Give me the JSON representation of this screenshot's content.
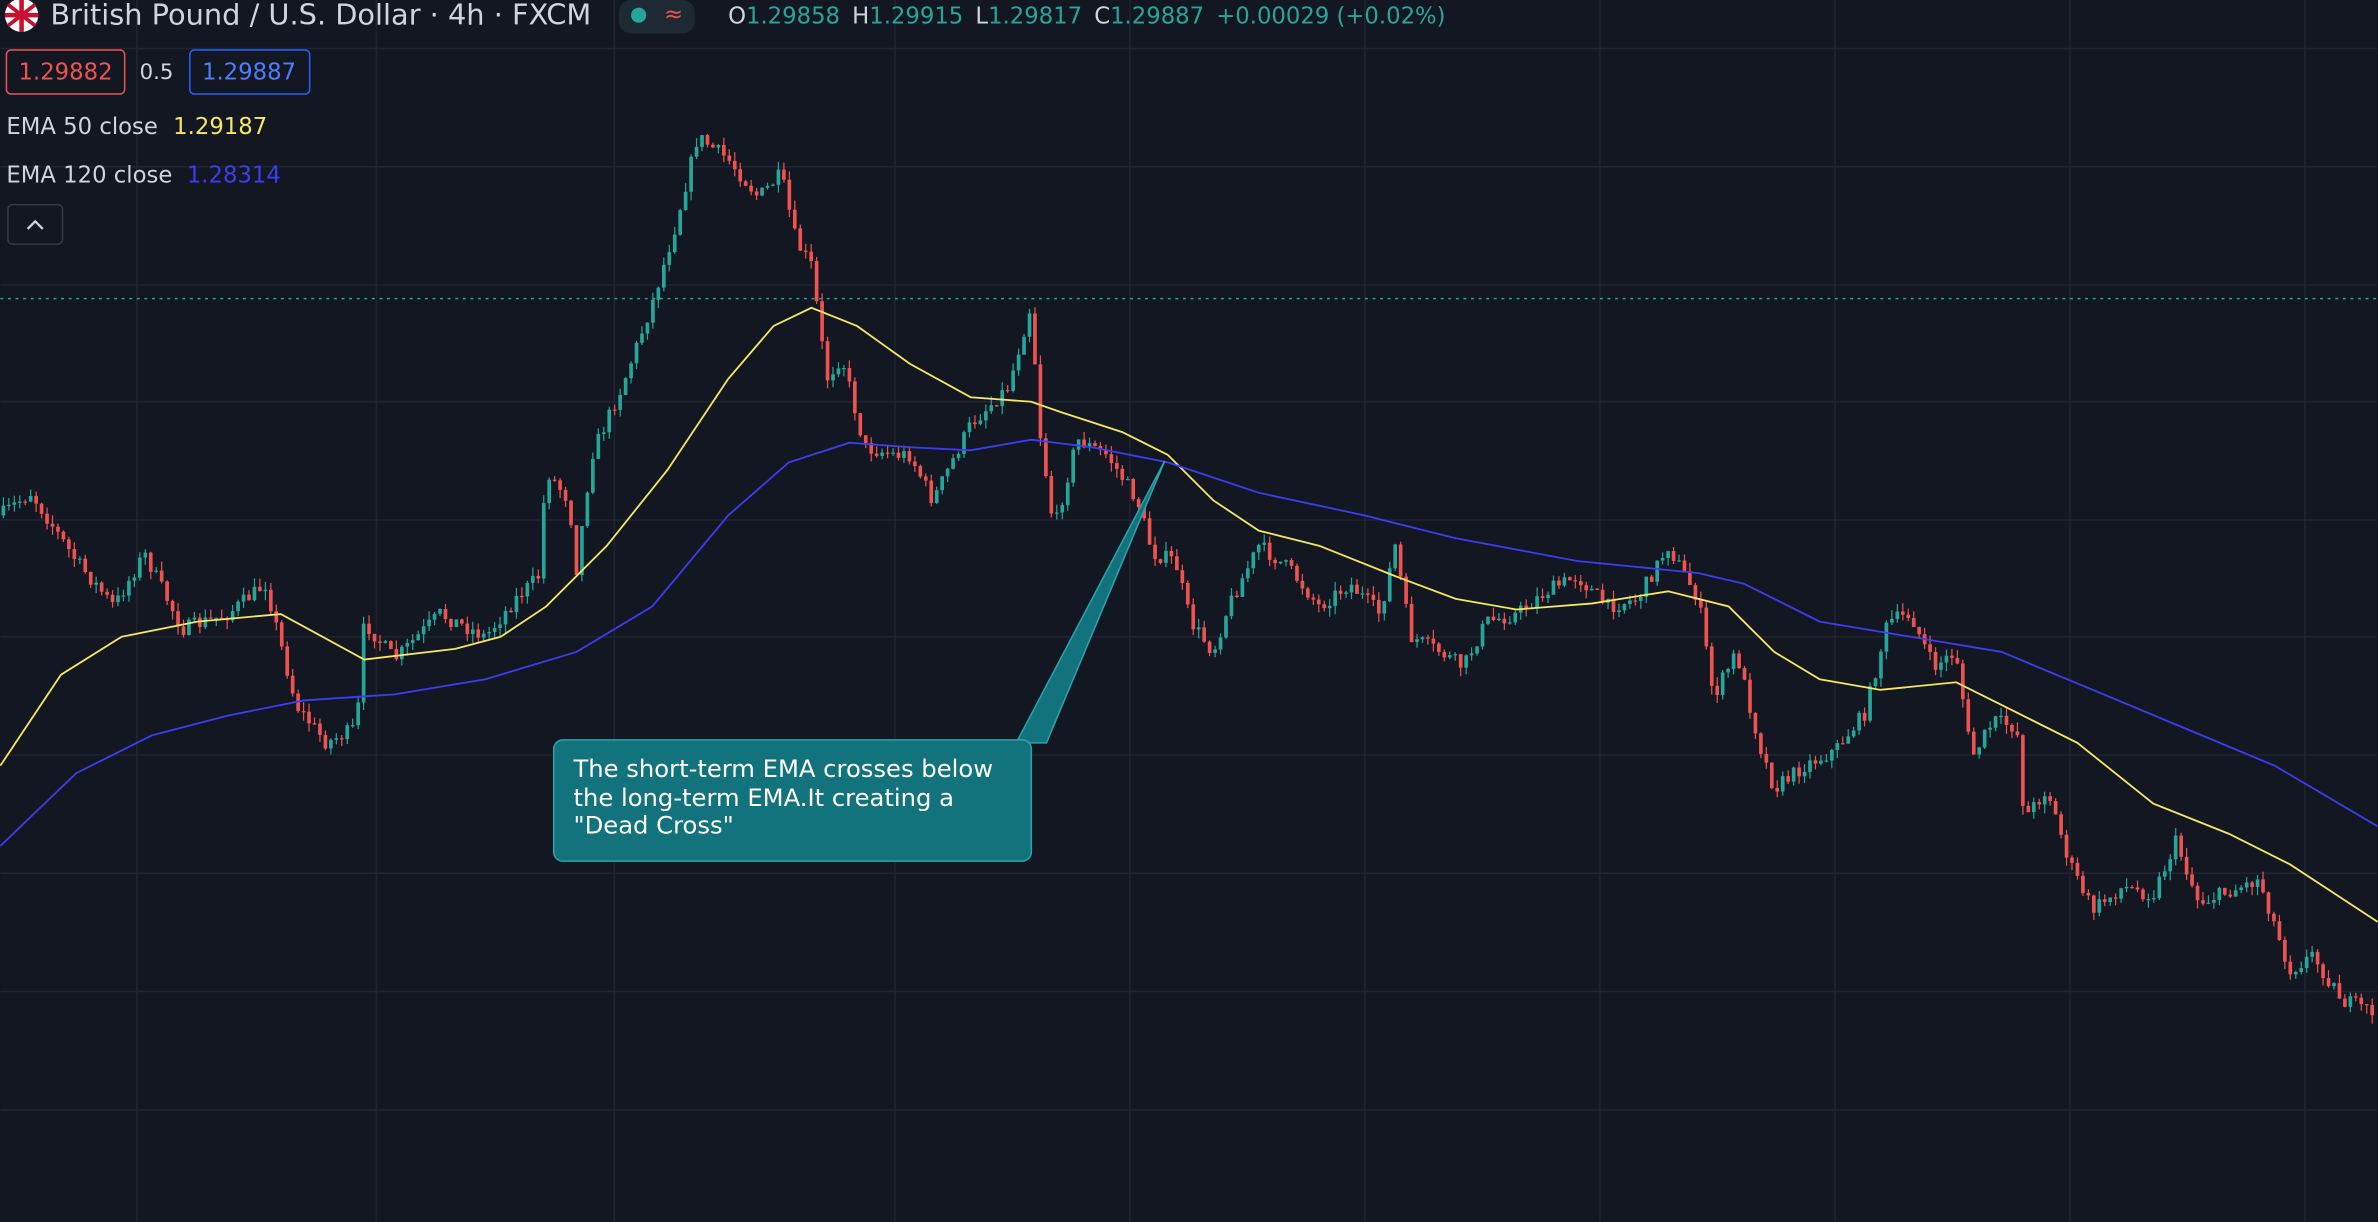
{
  "header": {
    "symbol": "British Pound / U.S. Dollar · 4h · FXCM",
    "ohlc": [
      {
        "label": "O",
        "value": "1.29858"
      },
      {
        "label": "H",
        "value": "1.29915"
      },
      {
        "label": "L",
        "value": "1.29817"
      },
      {
        "label": "C",
        "value": "1.29887"
      }
    ],
    "change": "+0.00029 (+0.02%)"
  },
  "order": {
    "sell": "1.29882",
    "spread": "0.5",
    "buy": "1.29887"
  },
  "indicators": [
    {
      "name": "EMA 50 close",
      "value": "1.29187"
    },
    {
      "name": "EMA 120 close",
      "value": "1.28314"
    }
  ],
  "annotation": [
    "The short-term EMA crosses below",
    "the long-term EMA.It creating a",
    "\"Dead Cross\""
  ]
}
